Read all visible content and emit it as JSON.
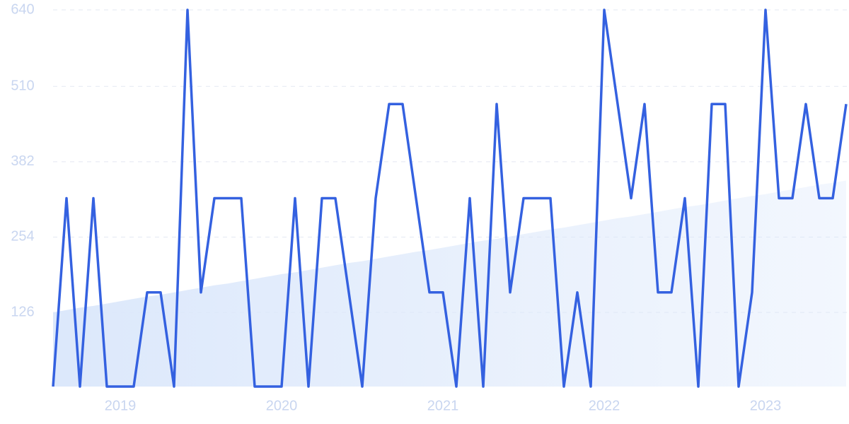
{
  "chart_data": {
    "type": "line",
    "categories": [
      null,
      null,
      null,
      null,
      null,
      "2019",
      null,
      null,
      null,
      null,
      null,
      null,
      null,
      null,
      null,
      null,
      null,
      "2020",
      null,
      null,
      null,
      null,
      null,
      null,
      null,
      null,
      null,
      null,
      null,
      "2021",
      null,
      null,
      null,
      null,
      null,
      null,
      null,
      null,
      null,
      null,
      null,
      "2022",
      null,
      null,
      null,
      null,
      null,
      null,
      null,
      null,
      null,
      null,
      null,
      "2023",
      null,
      null,
      null,
      null,
      null,
      null
    ],
    "series": [
      {
        "color": "#3461e0",
        "values": [
          0,
          320,
          0,
          320,
          0,
          0,
          0,
          160,
          160,
          0,
          640,
          160,
          320,
          320,
          320,
          0,
          0,
          0,
          320,
          0,
          320,
          320,
          160,
          0,
          320,
          480,
          480,
          320,
          160,
          160,
          0,
          320,
          0,
          480,
          160,
          320,
          320,
          320,
          0,
          160,
          0,
          640,
          480,
          320,
          480,
          160,
          160,
          320,
          0,
          480,
          480,
          0,
          160,
          640,
          320,
          320,
          480,
          320,
          320,
          480
        ]
      },
      {
        "color": "#dce8fb",
        "fill": true,
        "values": [
          126,
          130,
          134,
          137,
          141,
          145,
          149,
          153,
          156,
          160,
          164,
          168,
          172,
          175,
          179,
          183,
          187,
          191,
          194,
          198,
          202,
          206,
          210,
          213,
          217,
          221,
          225,
          229,
          232,
          236,
          240,
          244,
          248,
          251,
          255,
          259,
          263,
          267,
          270,
          274,
          278,
          282,
          286,
          289,
          293,
          297,
          301,
          305,
          308,
          312,
          316,
          320,
          324,
          327,
          331,
          335,
          339,
          343,
          346,
          350
        ]
      }
    ],
    "ylim": [
      0,
      640
    ],
    "yticks": [
      126,
      254,
      382,
      510,
      640
    ],
    "grid": true
  }
}
